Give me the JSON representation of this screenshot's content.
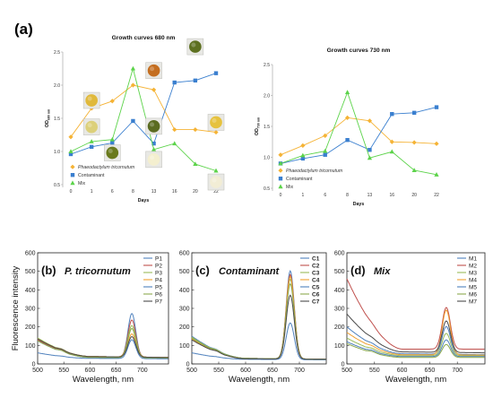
{
  "panel_label": "(a)",
  "chart_data": [
    {
      "id": "growth680",
      "type": "line",
      "title": "Growth curves 680 nm",
      "xlabel": "Days",
      "ylabel": "OD680 nm",
      "ylabel_main": "OD",
      "ylabel_sub": "680 nm",
      "categories": [
        "0",
        "1",
        "6",
        "8",
        "13",
        "16",
        "20",
        "22"
      ],
      "ylim": [
        0.5,
        2.5
      ],
      "yticks": [
        0.5,
        1.0,
        1.5,
        2.0,
        2.5
      ],
      "ytick_labels": [
        "0.5",
        "1.0",
        "1.5",
        "2.0",
        "2.5"
      ],
      "legend_position": "bottom-left",
      "series": [
        {
          "name": "Phaeodactylum tricornutum",
          "color": "#f5b335",
          "marker": "diamond",
          "values": [
            1.22,
            1.65,
            1.76,
            2.0,
            1.93,
            1.33,
            1.33,
            1.29
          ]
        },
        {
          "name": "Contaminant",
          "color": "#3a7fcf",
          "marker": "square",
          "values": [
            0.96,
            1.07,
            1.13,
            1.46,
            1.12,
            2.04,
            2.07,
            2.18
          ]
        },
        {
          "name": "Mix",
          "color": "#5cd34a",
          "marker": "triangle",
          "values": [
            1.0,
            1.15,
            1.18,
            2.25,
            1.03,
            1.12,
            0.81,
            0.71
          ]
        }
      ],
      "photos": [
        {
          "label": "flask-1",
          "color": "#e0b93b",
          "cat": 1,
          "y": 1.77
        },
        {
          "label": "flask-2",
          "color": "#dcd07a",
          "cat": 1,
          "y": 1.37
        },
        {
          "label": "flask-3",
          "color": "#c46e20",
          "cat": 4,
          "y": 2.22
        },
        {
          "label": "flask-4",
          "color": "#6a7a1c",
          "cat": 2,
          "y": 0.98
        },
        {
          "label": "flask-5",
          "color": "#5d7020",
          "cat": 6,
          "y": 2.58
        },
        {
          "label": "flask-6",
          "color": "#5a6b20",
          "cat": 4,
          "y": 1.38
        },
        {
          "label": "flask-7",
          "color": "#f4efcf",
          "cat": 4,
          "y": 0.88
        },
        {
          "label": "flask-8",
          "color": "#e6c23e",
          "cat": 7,
          "y": 1.44
        },
        {
          "label": "flask-9",
          "color": "#f2edd5",
          "cat": 7,
          "y": 0.54
        }
      ]
    },
    {
      "id": "growth730",
      "type": "line",
      "title": "Growth curves 730 nm",
      "xlabel": "Days",
      "ylabel": "OD730 nm",
      "ylabel_main": "OD",
      "ylabel_sub": "730 nm",
      "categories": [
        "0",
        "1",
        "6",
        "8",
        "13",
        "16",
        "20",
        "22"
      ],
      "ylim": [
        0.5,
        2.5
      ],
      "yticks": [
        0.5,
        1.0,
        1.5,
        2.0,
        2.5
      ],
      "ytick_labels": [
        "0.5",
        "1.0",
        "1.5",
        "2.0",
        "2.5"
      ],
      "legend_position": "bottom-left",
      "series": [
        {
          "name": "Phaeodactylum tricornutum",
          "color": "#f5b335",
          "marker": "diamond",
          "values": [
            1.04,
            1.19,
            1.35,
            1.64,
            1.59,
            1.25,
            1.24,
            1.22
          ]
        },
        {
          "name": "Contaminant",
          "color": "#3a7fcf",
          "marker": "square",
          "values": [
            0.9,
            0.98,
            1.04,
            1.28,
            1.12,
            1.7,
            1.72,
            1.81
          ]
        },
        {
          "name": "Mix",
          "color": "#5cd34a",
          "marker": "triangle",
          "values": [
            0.9,
            1.03,
            1.1,
            2.05,
            0.99,
            1.09,
            0.79,
            0.72
          ]
        }
      ]
    },
    {
      "id": "fluo_b",
      "type": "line",
      "panel": "(b)",
      "title": "P. tricornutum",
      "title_style": "bolditalic",
      "ylabel": "Fluorescence intensity",
      "xlabel": "Wavelength, nm",
      "xlim": [
        500,
        750
      ],
      "xticks": [
        500,
        550,
        600,
        650,
        700
      ],
      "ylim": [
        0,
        600
      ],
      "yticks": [
        0,
        100,
        200,
        300,
        400,
        500,
        600
      ],
      "show_yticks": true,
      "legend_position": "top-right",
      "peak_center": 680,
      "series": [
        {
          "name": "P1",
          "color": "#4f81bd",
          "start": 125,
          "min": 35,
          "tail": 30,
          "peak": 270
        },
        {
          "name": "P2",
          "color": "#c0504d",
          "start": 130,
          "min": 40,
          "tail": 35,
          "peak": 235
        },
        {
          "name": "P3",
          "color": "#9bbb59",
          "start": 140,
          "min": 40,
          "tail": 35,
          "peak": 205
        },
        {
          "name": "P4",
          "color": "#f0a030",
          "start": 135,
          "min": 40,
          "tail": 35,
          "peak": 160
        },
        {
          "name": "P5",
          "color": "#4f81bd",
          "start": 60,
          "min": 30,
          "tail": 28,
          "peak": 130
        },
        {
          "name": "P6",
          "color": "#8caa4e",
          "start": 125,
          "min": 35,
          "tail": 32,
          "peak": 190
        },
        {
          "name": "P7",
          "color": "#4a4a4a",
          "start": 135,
          "min": 40,
          "tail": 35,
          "peak": 145
        }
      ]
    },
    {
      "id": "fluo_c",
      "type": "line",
      "panel": "(c)",
      "title": "Contaminant",
      "title_style": "bolditalic",
      "xlabel": "Wavelength, nm",
      "xlim": [
        500,
        750
      ],
      "xticks": [
        500,
        550,
        600,
        650,
        700
      ],
      "ylim": [
        0,
        600
      ],
      "yticks": [
        0,
        100,
        200,
        300,
        400,
        500,
        600
      ],
      "show_yticks": true,
      "legend_position": "top-right",
      "peak_center": 683,
      "series": [
        {
          "name": "C1",
          "color": "#4f81bd",
          "start": 150,
          "min": 30,
          "tail": 25,
          "peak": 500
        },
        {
          "name": "C2",
          "color": "#c0504d",
          "start": 140,
          "min": 30,
          "tail": 25,
          "peak": 480
        },
        {
          "name": "C3",
          "color": "#9bbb59",
          "start": 145,
          "min": 30,
          "tail": 25,
          "peak": 455
        },
        {
          "name": "C4",
          "color": "#f0a030",
          "start": 135,
          "min": 28,
          "tail": 25,
          "peak": 470
        },
        {
          "name": "C5",
          "color": "#4f81bd",
          "start": 60,
          "min": 25,
          "tail": 22,
          "peak": 220
        },
        {
          "name": "C6",
          "color": "#8caa4e",
          "start": 140,
          "min": 30,
          "tail": 25,
          "peak": 430
        },
        {
          "name": "C7",
          "color": "#4a4a4a",
          "start": 130,
          "min": 28,
          "tail": 25,
          "peak": 370
        }
      ]
    },
    {
      "id": "fluo_d",
      "type": "line",
      "panel": "(d)",
      "title": "Mix",
      "title_style": "bolditalic",
      "xlabel": "Wavelength, nm",
      "xlim": [
        500,
        750
      ],
      "xticks": [
        500,
        550,
        600,
        650,
        700
      ],
      "ylim": [
        0,
        600
      ],
      "yticks": [
        0,
        100,
        200,
        300,
        400,
        500,
        600
      ],
      "show_yticks": true,
      "legend_position": "top-right",
      "peak_center": 680,
      "series": [
        {
          "name": "M1",
          "color": "#4f81bd",
          "start": 200,
          "min": 55,
          "tail": 50,
          "peak": 200
        },
        {
          "name": "M2",
          "color": "#c0504d",
          "start": 460,
          "min": 80,
          "tail": 80,
          "peak": 305
        },
        {
          "name": "M3",
          "color": "#9bbb59",
          "start": 140,
          "min": 45,
          "tail": 45,
          "peak": 165
        },
        {
          "name": "M4",
          "color": "#f0a030",
          "start": 170,
          "min": 50,
          "tail": 48,
          "peak": 290
        },
        {
          "name": "M5",
          "color": "#4f81bd",
          "start": 120,
          "min": 40,
          "tail": 40,
          "peak": 130
        },
        {
          "name": "M6",
          "color": "#8caa4e",
          "start": 110,
          "min": 35,
          "tail": 35,
          "peak": 105
        },
        {
          "name": "M7",
          "color": "#4a4a4a",
          "start": 270,
          "min": 65,
          "tail": 60,
          "peak": 230
        }
      ]
    }
  ]
}
